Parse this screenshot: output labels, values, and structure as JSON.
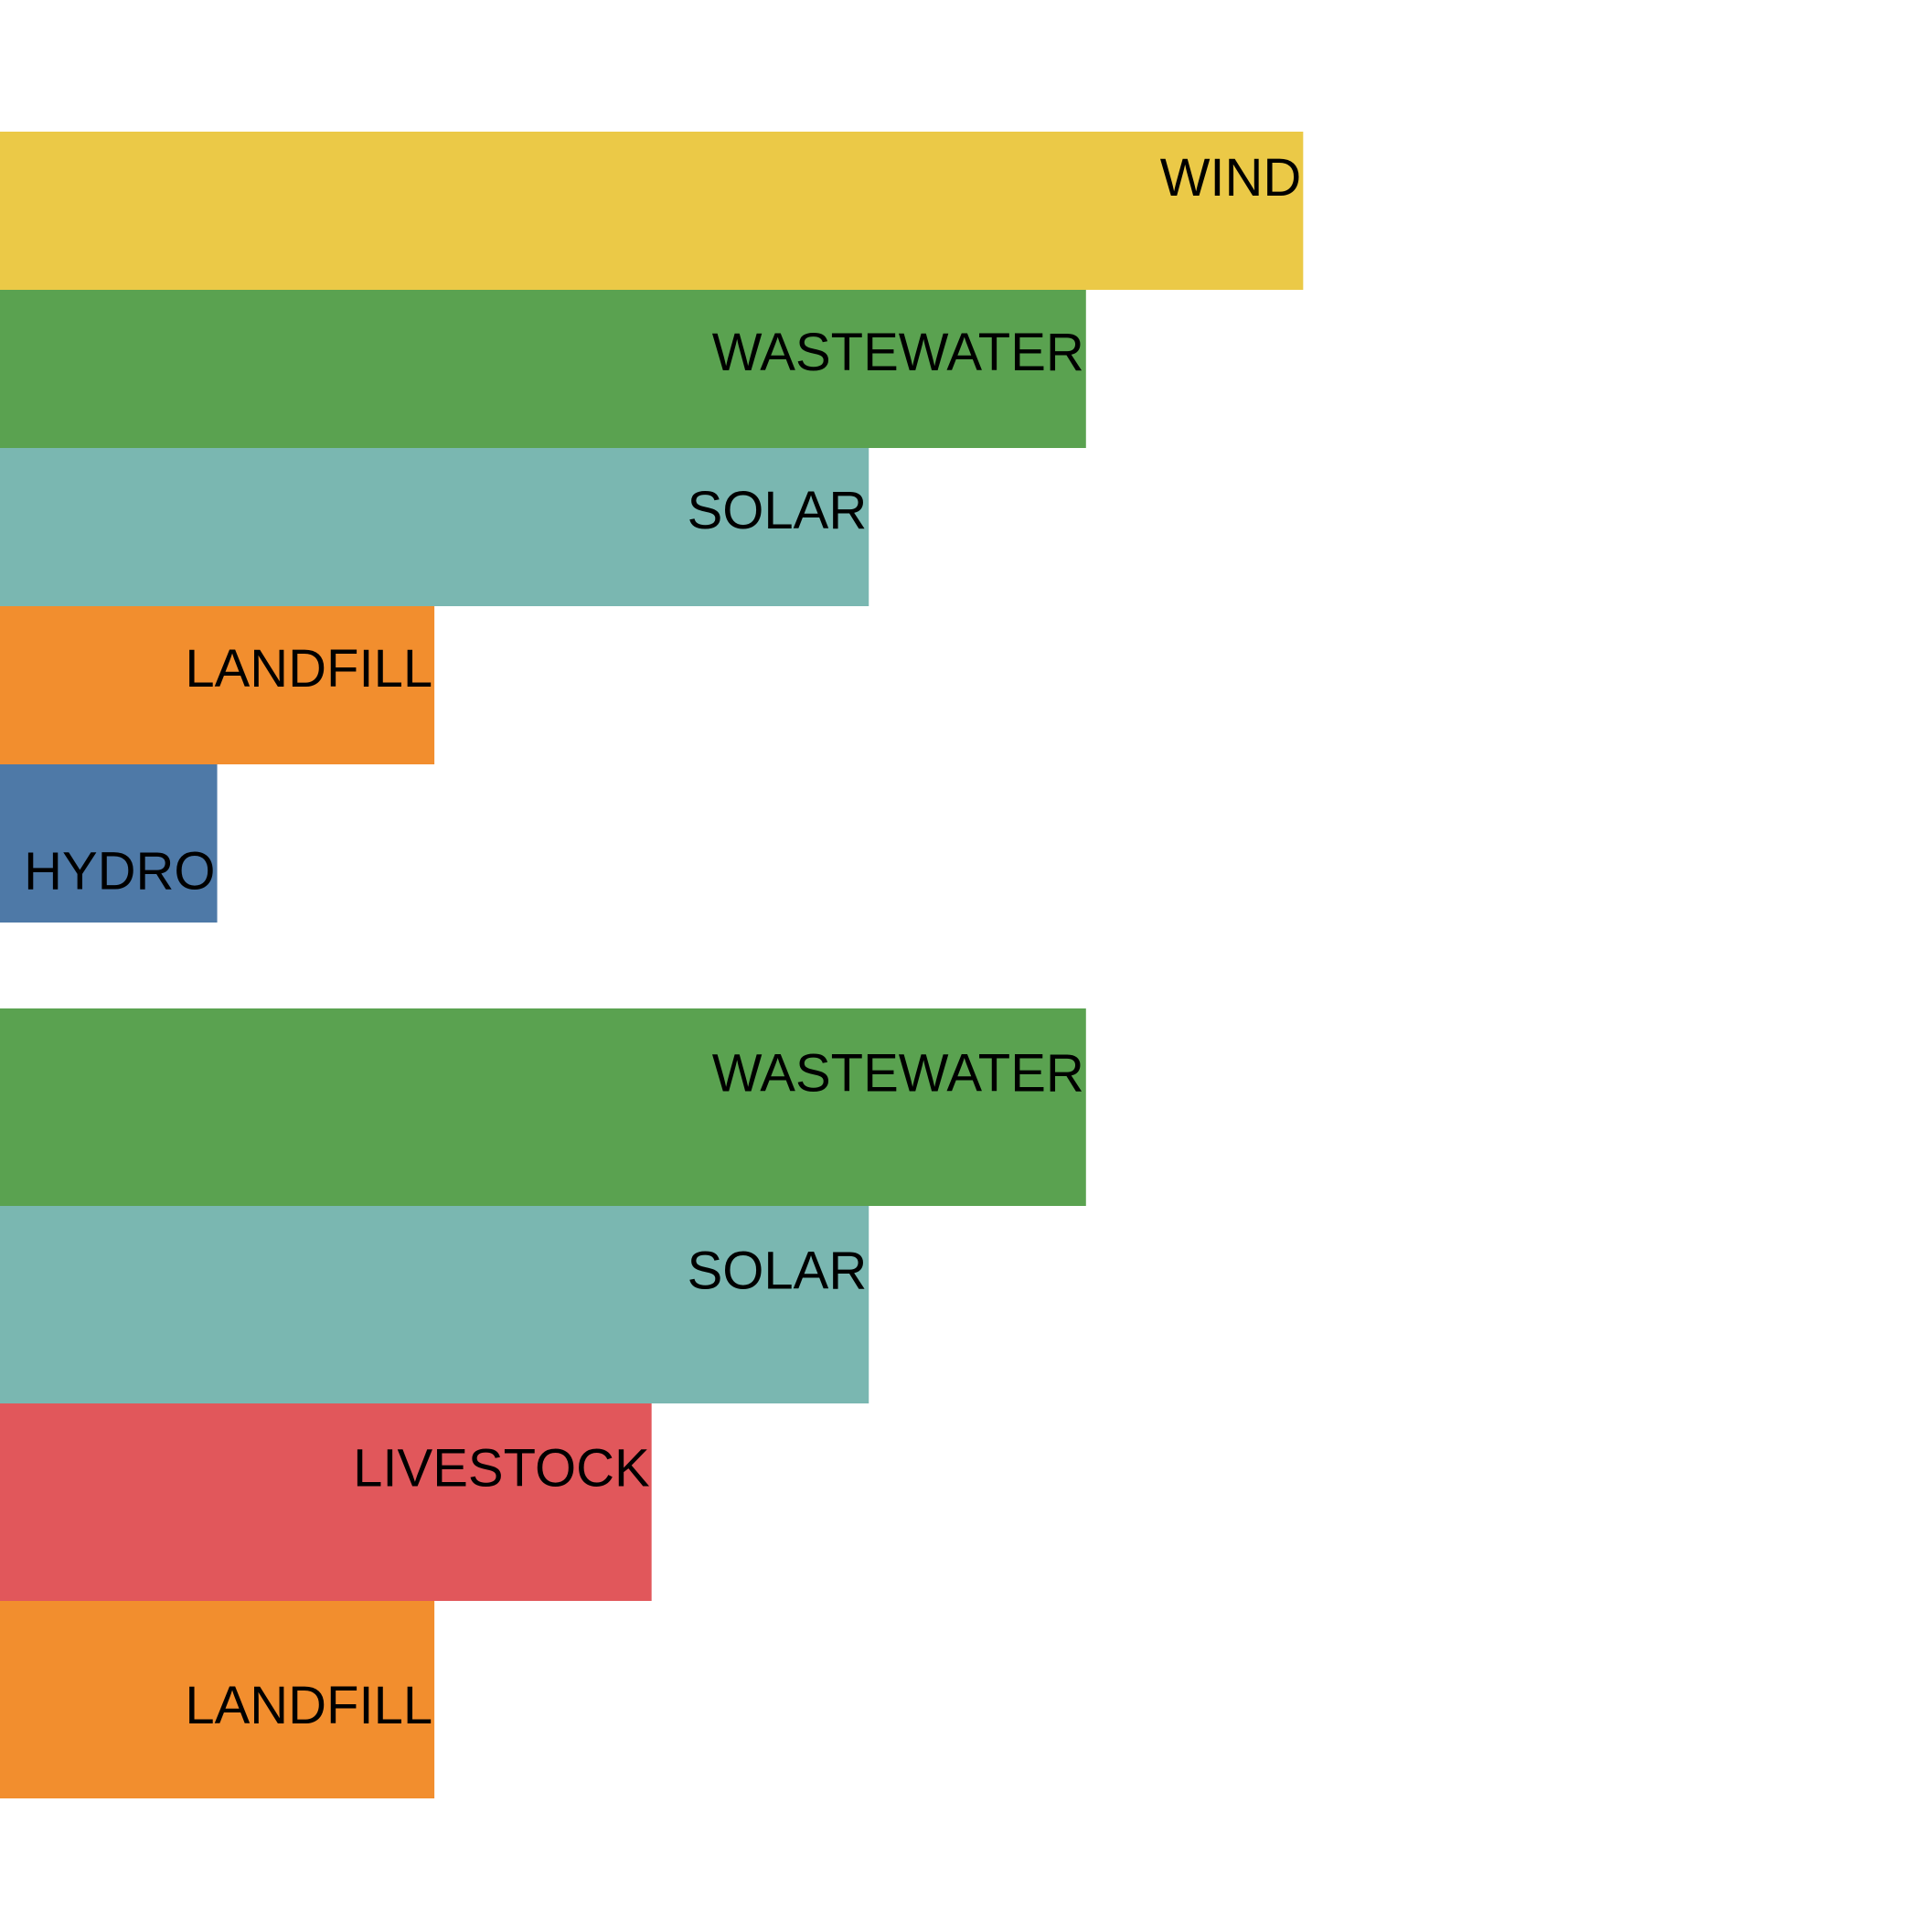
{
  "chart_data": [
    {
      "type": "bar",
      "orientation": "horizontal",
      "label_position": "top",
      "categories": [
        "WIND",
        "WASTEWATER",
        "SOLAR",
        "LANDFILL",
        "HYDRO"
      ],
      "values": [
        6,
        5,
        4,
        2,
        1
      ],
      "colors": [
        "#EBC947",
        "#5AA250",
        "#7AB7B1",
        "#F28E2E",
        "#4E79A7"
      ],
      "xlim": [
        0,
        8.84
      ],
      "grid": false,
      "axes_visible": false
    },
    {
      "type": "bar",
      "orientation": "horizontal",
      "label_position": "middle",
      "categories": [
        "WASTEWATER",
        "SOLAR",
        "LIVESTOCK",
        "LANDFILL"
      ],
      "values": [
        5,
        4,
        3,
        2
      ],
      "colors": [
        "#5AA250",
        "#7AB7B1",
        "#E1575B",
        "#F28E2E"
      ],
      "xlim": [
        0,
        8.84
      ],
      "grid": false,
      "axes_visible": false
    }
  ]
}
